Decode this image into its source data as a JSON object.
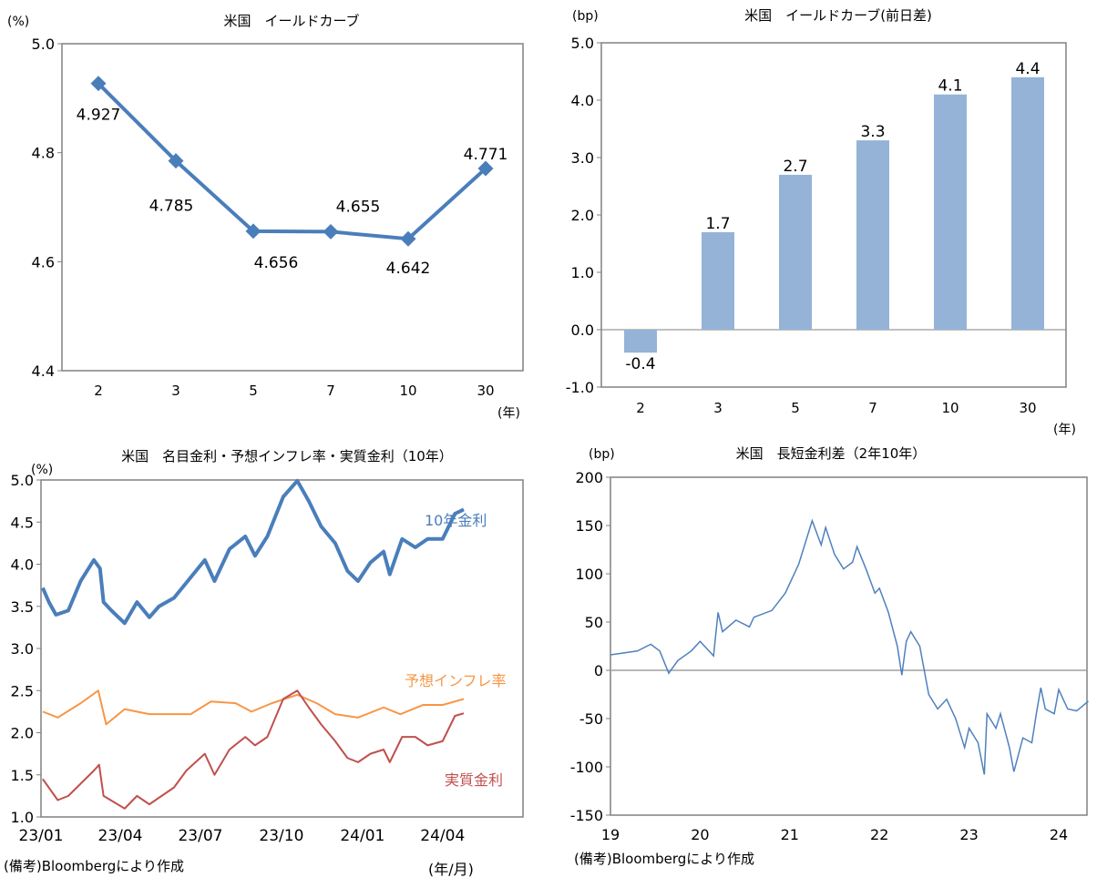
{
  "chart_data": [
    {
      "type": "line",
      "title": "米国　イールドカーブ",
      "ylabel": "(%)",
      "xlabel": "(年)",
      "categories": [
        "2",
        "3",
        "5",
        "7",
        "10",
        "30"
      ],
      "values": [
        4.927,
        4.785,
        4.656,
        4.655,
        4.642,
        4.771
      ],
      "data_labels": [
        "4.927",
        "4.785",
        "4.656",
        "4.655",
        "4.642",
        "4.771"
      ],
      "ylim": [
        4.4,
        5.0
      ],
      "yticks": [
        "4.4",
        "4.6",
        "4.8",
        "5.0"
      ],
      "color": "#4a7ebb",
      "grid": false
    },
    {
      "type": "bar",
      "title": "米国　イールドカーブ(前日差)",
      "ylabel": "(bp)",
      "xlabel": "(年)",
      "categories": [
        "2",
        "3",
        "5",
        "7",
        "10",
        "30"
      ],
      "values": [
        -0.4,
        1.7,
        2.7,
        3.3,
        4.1,
        4.4
      ],
      "data_labels": [
        "-0.4",
        "1.7",
        "2.7",
        "3.3",
        "4.1",
        "4.4"
      ],
      "ylim": [
        -1.0,
        5.0
      ],
      "yticks": [
        "-1.0",
        "0.0",
        "1.0",
        "2.0",
        "3.0",
        "4.0",
        "5.0"
      ],
      "color": "#95b3d7",
      "grid": false
    },
    {
      "type": "line",
      "title": "米国　名目金利・予想インフレ率・実質金利（10年）",
      "ylabel": "(%)",
      "xlabel": "(年/月)",
      "note": "(備考)Bloombergにより作成",
      "xlim": [
        "2023-01-01",
        "2024-05-01"
      ],
      "xticks": [
        "23/01",
        "23/04",
        "23/07",
        "23/10",
        "24/01",
        "24/04"
      ],
      "ylim": [
        1.0,
        5.0
      ],
      "yticks": [
        "1.0",
        "1.5",
        "2.0",
        "2.5",
        "3.0",
        "3.5",
        "4.0",
        "4.5",
        "5.0"
      ],
      "grid": false,
      "series": [
        {
          "name": "10年金利",
          "color": "#4a7ebb",
          "x": [
            "2023-01-03",
            "2023-01-10",
            "2023-01-18",
            "2023-02-01",
            "2023-02-15",
            "2023-03-02",
            "2023-03-09",
            "2023-03-13",
            "2023-03-22",
            "2023-04-06",
            "2023-04-20",
            "2023-05-04",
            "2023-05-15",
            "2023-06-01",
            "2023-06-15",
            "2023-07-06",
            "2023-07-17",
            "2023-08-03",
            "2023-08-21",
            "2023-09-01",
            "2023-09-15",
            "2023-10-03",
            "2023-10-19",
            "2023-11-01",
            "2023-11-15",
            "2023-12-01",
            "2023-12-15",
            "2023-12-27",
            "2024-01-10",
            "2024-01-25",
            "2024-02-01",
            "2024-02-15",
            "2024-03-01",
            "2024-03-15",
            "2024-04-01",
            "2024-04-15",
            "2024-04-25"
          ],
          "y": [
            3.72,
            3.55,
            3.4,
            3.45,
            3.8,
            4.05,
            3.95,
            3.55,
            3.45,
            3.3,
            3.55,
            3.37,
            3.5,
            3.6,
            3.78,
            4.05,
            3.8,
            4.18,
            4.33,
            4.1,
            4.33,
            4.8,
            4.99,
            4.75,
            4.45,
            4.25,
            3.92,
            3.8,
            4.02,
            4.15,
            3.88,
            4.3,
            4.2,
            4.3,
            4.3,
            4.6,
            4.65
          ]
        },
        {
          "name": "予想インフレ率",
          "color": "#f79646",
          "x": [
            "2023-01-03",
            "2023-01-20",
            "2023-02-15",
            "2023-03-07",
            "2023-03-16",
            "2023-04-06",
            "2023-05-04",
            "2023-06-01",
            "2023-06-20",
            "2023-07-13",
            "2023-08-10",
            "2023-08-28",
            "2023-09-20",
            "2023-10-19",
            "2023-11-10",
            "2023-12-01",
            "2023-12-27",
            "2024-01-25",
            "2024-02-13",
            "2024-03-10",
            "2024-04-01",
            "2024-04-25"
          ],
          "y": [
            2.25,
            2.18,
            2.35,
            2.5,
            2.1,
            2.28,
            2.22,
            2.22,
            2.22,
            2.37,
            2.35,
            2.25,
            2.35,
            2.45,
            2.35,
            2.22,
            2.18,
            2.3,
            2.22,
            2.33,
            2.33,
            2.4
          ]
        },
        {
          "name": "実質金利",
          "color": "#c0504d",
          "x": [
            "2023-01-03",
            "2023-01-20",
            "2023-02-01",
            "2023-03-02",
            "2023-03-08",
            "2023-03-13",
            "2023-04-06",
            "2023-04-20",
            "2023-05-04",
            "2023-06-01",
            "2023-06-15",
            "2023-07-06",
            "2023-07-17",
            "2023-08-03",
            "2023-08-21",
            "2023-09-01",
            "2023-09-15",
            "2023-10-03",
            "2023-10-19",
            "2023-11-01",
            "2023-11-15",
            "2023-12-01",
            "2023-12-15",
            "2023-12-27",
            "2024-01-10",
            "2024-01-25",
            "2024-02-01",
            "2024-02-15",
            "2024-03-01",
            "2024-03-15",
            "2024-04-01",
            "2024-04-15",
            "2024-04-25"
          ],
          "y": [
            1.45,
            1.2,
            1.25,
            1.55,
            1.62,
            1.25,
            1.1,
            1.25,
            1.15,
            1.35,
            1.55,
            1.75,
            1.5,
            1.8,
            1.95,
            1.85,
            1.95,
            2.4,
            2.5,
            2.3,
            2.1,
            1.9,
            1.7,
            1.65,
            1.75,
            1.8,
            1.65,
            1.95,
            1.95,
            1.85,
            1.9,
            2.2,
            2.23
          ]
        }
      ]
    },
    {
      "type": "line",
      "title": "米国　長短金利差（2年10年）",
      "ylabel": "(bp)",
      "note": "(備考)Bloombergにより作成",
      "xlim": [
        2019,
        2024.33
      ],
      "xticks": [
        "19",
        "20",
        "21",
        "22",
        "23",
        "24"
      ],
      "ylim": [
        -150,
        200
      ],
      "yticks": [
        "-150",
        "-100",
        "-50",
        "0",
        "50",
        "100",
        "150",
        "200"
      ],
      "grid": false,
      "series": [
        {
          "color": "#4f81bd",
          "x": [
            2019.0,
            2019.3,
            2019.45,
            2019.55,
            2019.65,
            2019.75,
            2019.9,
            2020.0,
            2020.15,
            2020.2,
            2020.25,
            2020.4,
            2020.55,
            2020.6,
            2020.8,
            2020.95,
            2021.1,
            2021.25,
            2021.35,
            2021.4,
            2021.5,
            2021.6,
            2021.7,
            2021.75,
            2021.85,
            2021.95,
            2022.0,
            2022.1,
            2022.2,
            2022.25,
            2022.3,
            2022.35,
            2022.45,
            2022.5,
            2022.55,
            2022.65,
            2022.75,
            2022.85,
            2022.95,
            2023.0,
            2023.1,
            2023.17,
            2023.2,
            2023.3,
            2023.35,
            2023.45,
            2023.5,
            2023.6,
            2023.7,
            2023.75,
            2023.8,
            2023.85,
            2023.95,
            2024.0,
            2024.1,
            2024.2,
            2024.33
          ],
          "y": [
            16,
            20,
            27,
            20,
            -3,
            10,
            20,
            30,
            15,
            60,
            40,
            52,
            45,
            55,
            62,
            80,
            110,
            155,
            130,
            148,
            120,
            105,
            112,
            128,
            105,
            80,
            85,
            60,
            25,
            -5,
            30,
            40,
            25,
            0,
            -25,
            -40,
            -30,
            -50,
            -80,
            -60,
            -75,
            -108,
            -45,
            -60,
            -45,
            -80,
            -105,
            -70,
            -75,
            -45,
            -18,
            -40,
            -45,
            -20,
            -40,
            -42,
            -32
          ]
        }
      ]
    }
  ]
}
